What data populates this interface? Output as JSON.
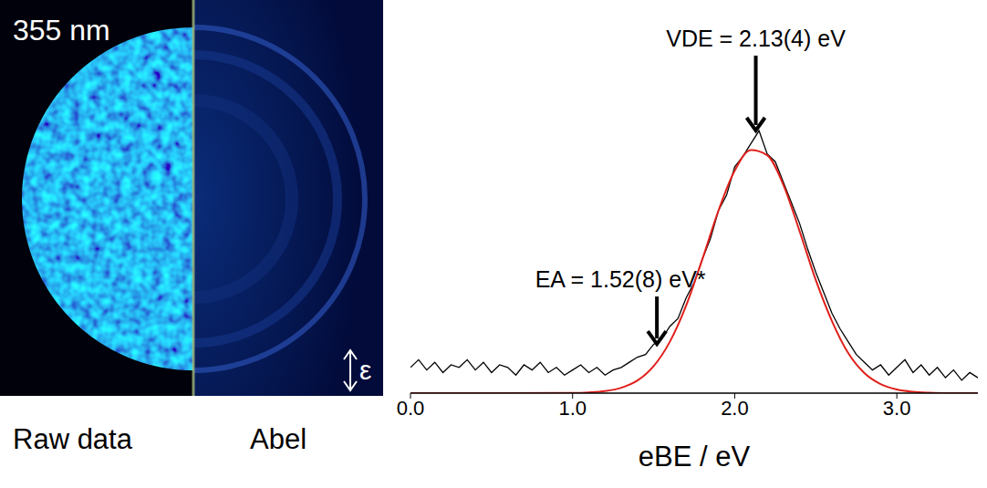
{
  "image_panel": {
    "wavelength_label": "355 nm",
    "labels": [
      "Raw data",
      "Abel"
    ],
    "polarization_label": "ε"
  },
  "chart_data": {
    "type": "line",
    "x_label": "eBE / eV",
    "xlim": [
      0,
      3.5
    ],
    "xticks": [
      {
        "value": 0,
        "label": "0.0"
      },
      {
        "value": 1,
        "label": "1.0"
      },
      {
        "value": 2,
        "label": "2.0"
      },
      {
        "value": 3,
        "label": "3.0"
      }
    ],
    "ylim": [
      0,
      1.5
    ],
    "tick_labels": "x",
    "grid": false,
    "series": [
      {
        "color": "#000000",
        "line_style": "solid",
        "x": [
          0,
          0.05,
          0.1,
          0.15,
          0.2,
          0.25,
          0.3,
          0.35,
          0.4,
          0.45,
          0.5,
          0.55,
          0.6,
          0.65,
          0.7,
          0.75,
          0.8,
          0.85,
          0.9,
          0.95,
          1.0,
          1.05,
          1.1,
          1.15,
          1.2,
          1.25,
          1.3,
          1.35,
          1.4,
          1.45,
          1.5,
          1.55,
          1.6,
          1.65,
          1.7,
          1.75,
          1.8,
          1.85,
          1.9,
          1.95,
          2.0,
          2.05,
          2.1,
          2.15,
          2.2,
          2.25,
          2.3,
          2.35,
          2.4,
          2.45,
          2.5,
          2.55,
          2.6,
          2.65,
          2.7,
          2.75,
          2.8,
          2.85,
          2.9,
          2.95,
          3.0,
          3.05,
          3.1,
          3.15,
          3.2,
          3.25,
          3.3,
          3.35,
          3.4,
          3.45,
          3.5
        ],
        "values": [
          0.1,
          0.13,
          0.09,
          0.12,
          0.08,
          0.11,
          0.1,
          0.13,
          0.09,
          0.12,
          0.08,
          0.11,
          0.1,
          0.07,
          0.11,
          0.09,
          0.12,
          0.08,
          0.1,
          0.07,
          0.09,
          0.11,
          0.08,
          0.1,
          0.07,
          0.09,
          0.1,
          0.12,
          0.14,
          0.15,
          0.19,
          0.21,
          0.26,
          0.29,
          0.37,
          0.43,
          0.52,
          0.6,
          0.71,
          0.77,
          0.88,
          0.92,
          0.97,
          1.02,
          0.93,
          0.9,
          0.82,
          0.74,
          0.66,
          0.56,
          0.47,
          0.39,
          0.31,
          0.25,
          0.2,
          0.15,
          0.12,
          0.09,
          0.11,
          0.07,
          0.1,
          0.13,
          0.08,
          0.11,
          0.07,
          0.1,
          0.06,
          0.09,
          0.05,
          0.08,
          0.06
        ]
      },
      {
        "color": "#e0201b",
        "line_style": "solid",
        "x": [
          0,
          0.5,
          1.0,
          1.1,
          1.2,
          1.3,
          1.4,
          1.5,
          1.6,
          1.7,
          1.8,
          1.9,
          2.0,
          2.1,
          2.2,
          2.3,
          2.4,
          2.5,
          2.6,
          2.7,
          2.8,
          2.9,
          3.0,
          3.1,
          3.2,
          3.3,
          3.5
        ],
        "values": [
          0,
          0,
          0.001,
          0.003,
          0.008,
          0.021,
          0.049,
          0.105,
          0.2,
          0.34,
          0.52,
          0.71,
          0.865,
          0.945,
          0.925,
          0.81,
          0.63,
          0.44,
          0.28,
          0.156,
          0.078,
          0.035,
          0.014,
          0.005,
          0.0015,
          0,
          0
        ]
      }
    ],
    "annotations": [
      {
        "text": "VDE = 2.13(4) eV",
        "x": 2.13,
        "y": 1.0
      },
      {
        "text": "EA = 1.52(8) eV*",
        "x": 1.52,
        "y": 0.17
      }
    ]
  }
}
